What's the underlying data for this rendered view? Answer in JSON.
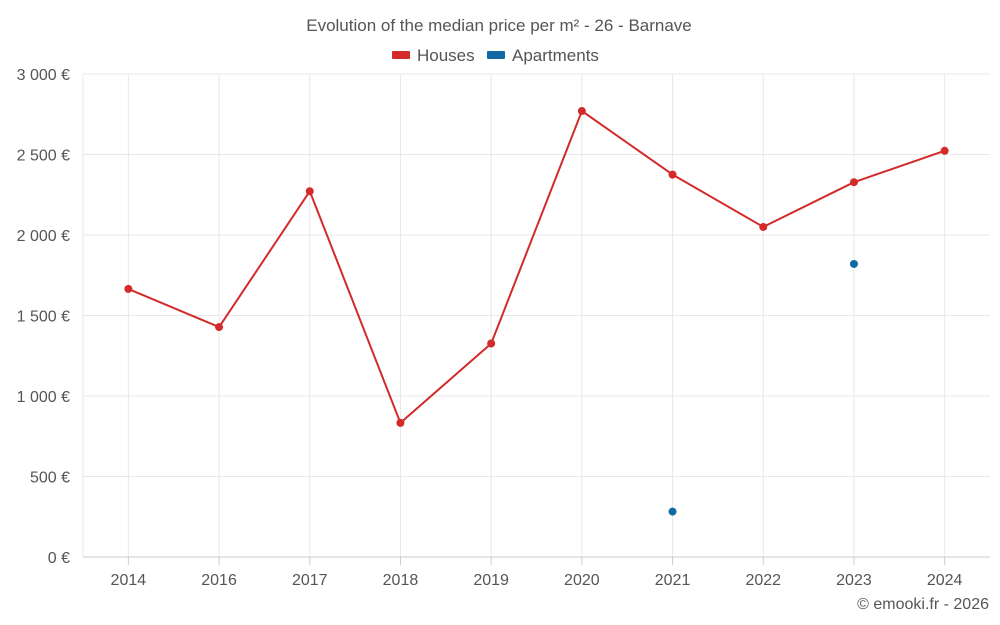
{
  "chart_data": {
    "type": "line",
    "title": "Evolution of the median price per m² - 26 - Barnave",
    "categories": [
      "2014",
      "2016",
      "2017",
      "2018",
      "2019",
      "2020",
      "2021",
      "2022",
      "2023",
      "2024"
    ],
    "series": [
      {
        "name": "Houses",
        "color": "#d32a2a",
        "mode": "line+markers",
        "values": [
          1665,
          1428,
          2272,
          833,
          1326,
          2770,
          2375,
          2050,
          2328,
          2523
        ]
      },
      {
        "name": "Apartments",
        "color": "#0e6aa3",
        "mode": "markers",
        "values": [
          null,
          null,
          null,
          null,
          null,
          null,
          282,
          null,
          1820,
          null
        ]
      }
    ],
    "ylim": [
      0,
      3000
    ],
    "yticks": [
      0,
      500,
      1000,
      1500,
      2000,
      2500,
      3000
    ],
    "ytick_labels": [
      "0 €",
      "500 €",
      "1 000 €",
      "1 500 €",
      "2 000 €",
      "2 500 €",
      "3 000 €"
    ],
    "xlabel": "",
    "ylabel": "",
    "grid": true,
    "legend_position": "top-center",
    "credit": "© emooki.fr - 2026"
  }
}
